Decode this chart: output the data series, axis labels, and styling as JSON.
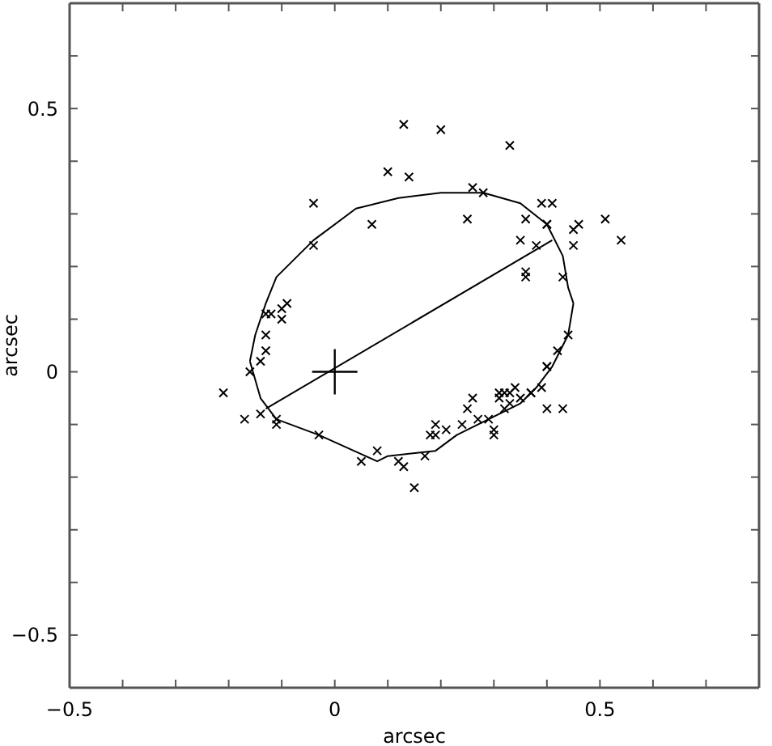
{
  "chart_data": {
    "type": "scatter",
    "xlabel": "arcsec",
    "ylabel": "arcsec",
    "xlim": [
      -0.5,
      0.8
    ],
    "ylim": [
      -0.6,
      0.7
    ],
    "xticks": [
      -0.5,
      {
        "value": -0.4,
        "label": null
      },
      {
        "value": -0.3,
        "label": null
      },
      {
        "value": -0.2,
        "label": null
      },
      {
        "value": -0.1,
        "label": null
      },
      0,
      {
        "value": 0.1,
        "label": null
      },
      {
        "value": 0.2,
        "label": null
      },
      {
        "value": 0.3,
        "label": null
      },
      {
        "value": 0.4,
        "label": null
      },
      0.5,
      {
        "value": 0.6,
        "label": null
      },
      {
        "value": 0.7,
        "label": null
      }
    ],
    "yticks": [
      -0.5,
      {
        "value": -0.4,
        "label": null
      },
      {
        "value": -0.3,
        "label": null
      },
      {
        "value": -0.2,
        "label": null
      },
      {
        "value": -0.1,
        "label": null
      },
      0,
      {
        "value": 0.1,
        "label": null
      },
      {
        "value": 0.2,
        "label": null
      },
      {
        "value": 0.3,
        "label": null
      },
      {
        "value": 0.4,
        "label": null
      },
      0.5,
      {
        "value": 0.6,
        "label": null
      }
    ],
    "grid": false,
    "legend": false,
    "marker": "cross",
    "series": [
      {
        "type": "scatter",
        "color": "#000000",
        "x": [
          0.13,
          0.2,
          0.33,
          0.1,
          0.14,
          -0.04,
          0.26,
          0.28,
          0.07,
          0.25,
          -0.04,
          0.39,
          0.41,
          0.36,
          0.4,
          0.4,
          0.51,
          0.45,
          0.46,
          0.35,
          0.38,
          0.45,
          0.54,
          0.36,
          0.36,
          0.43,
          0.44,
          0.42,
          0.4,
          0.4,
          0.39,
          0.37,
          0.26,
          0.25,
          0.31,
          0.31,
          0.32,
          0.33,
          0.34,
          0.37,
          0.35,
          0.33,
          0.32,
          0.4,
          0.43,
          0.27,
          0.29,
          0.3,
          0.3,
          0.24,
          0.21,
          0.19,
          -0.09,
          -0.13,
          -0.12,
          -0.1,
          -0.1,
          -0.13,
          -0.13,
          -0.14,
          -0.16,
          -0.21,
          -0.14,
          -0.17,
          -0.11,
          -0.11,
          -0.03,
          0.08,
          0.05,
          0.12,
          0.13,
          0.17,
          0.15,
          0.18,
          0.19
        ],
        "values": [
          0.47,
          0.46,
          0.43,
          0.38,
          0.37,
          0.32,
          0.35,
          0.34,
          0.28,
          0.29,
          0.24,
          0.32,
          0.32,
          0.29,
          0.28,
          0.28,
          0.29,
          0.27,
          0.28,
          0.25,
          0.24,
          0.24,
          0.25,
          0.19,
          0.18,
          0.18,
          0.07,
          0.04,
          0.01,
          0.01,
          -0.03,
          -0.04,
          -0.05,
          -0.07,
          -0.05,
          -0.04,
          -0.04,
          -0.04,
          -0.03,
          -0.04,
          -0.05,
          -0.06,
          -0.07,
          -0.07,
          -0.07,
          -0.09,
          -0.09,
          -0.11,
          -0.12,
          -0.1,
          -0.11,
          -0.1,
          0.13,
          0.11,
          0.11,
          0.12,
          0.1,
          0.07,
          0.04,
          0.02,
          0.0,
          -0.04,
          -0.08,
          -0.09,
          -0.09,
          -0.1,
          -0.12,
          -0.15,
          -0.17,
          -0.17,
          -0.18,
          -0.16,
          -0.22,
          -0.12,
          -0.12
        ]
      },
      {
        "type": "line",
        "color": "#000000",
        "marker": "none",
        "x": [
          -0.16,
          -0.15,
          -0.13,
          -0.11,
          -0.04,
          0.04,
          0.12,
          0.2,
          0.28,
          0.35,
          0.4,
          0.43,
          0.44,
          0.45
        ],
        "values": [
          0.02,
          0.07,
          0.13,
          0.18,
          0.25,
          0.31,
          0.33,
          0.34,
          0.34,
          0.32,
          0.28,
          0.22,
          0.16,
          0.13
        ]
      },
      {
        "type": "line",
        "color": "#000000",
        "marker": "none",
        "x": [
          -0.16,
          -0.14,
          -0.11,
          -0.03,
          0.08,
          0.1,
          0.19,
          0.23,
          0.29,
          0.35,
          0.38,
          0.41,
          0.44,
          0.45
        ],
        "values": [
          0.02,
          -0.05,
          -0.09,
          -0.12,
          -0.17,
          -0.16,
          -0.15,
          -0.12,
          -0.09,
          -0.06,
          -0.03,
          0.01,
          0.07,
          0.13
        ]
      },
      {
        "type": "line",
        "color": "#000000",
        "marker": "none",
        "x": [
          -0.13,
          0.41
        ],
        "values": [
          -0.07,
          0.25
        ]
      },
      {
        "type": "scatter",
        "color": "#000000",
        "marker": "cross",
        "x": [
          0
        ],
        "values": [
          0
        ]
      }
    ]
  }
}
